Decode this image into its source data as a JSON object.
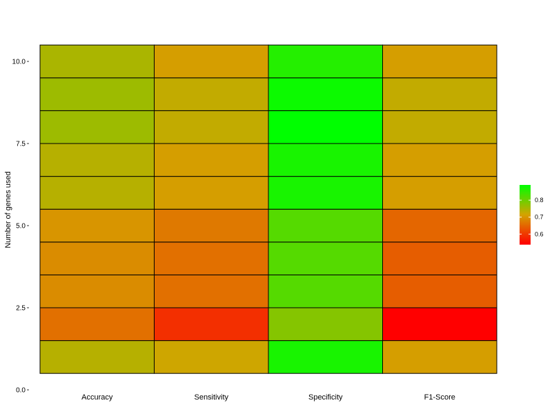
{
  "chart_data": {
    "type": "heatmap",
    "title": "",
    "xlabel": "",
    "ylabel": "Number of genes used",
    "categories": [
      "Accuracy",
      "Sensitivity",
      "Specificity",
      "F1-Score"
    ],
    "y": [
      1,
      2,
      3,
      4,
      5,
      6,
      7,
      8,
      9,
      10
    ],
    "ylim": [
      0,
      10.5
    ],
    "y_ticks": [
      "0.0",
      "2.5",
      "5.0",
      "7.5",
      "10.0"
    ],
    "grid": false,
    "values": [
      [
        0.74,
        0.72,
        0.87,
        0.71
      ],
      [
        0.66,
        0.59,
        0.78,
        0.54
      ],
      [
        0.69,
        0.66,
        0.82,
        0.64
      ],
      [
        0.69,
        0.66,
        0.82,
        0.64
      ],
      [
        0.7,
        0.67,
        0.82,
        0.65
      ],
      [
        0.74,
        0.71,
        0.87,
        0.71
      ],
      [
        0.74,
        0.71,
        0.87,
        0.71
      ],
      [
        0.76,
        0.73,
        0.89,
        0.73
      ],
      [
        0.76,
        0.73,
        0.88,
        0.73
      ],
      [
        0.75,
        0.71,
        0.86,
        0.71
      ]
    ],
    "color_scale": {
      "low": "#ff0000",
      "mid": "#d4a300",
      "high": "#00ff00",
      "min": 0.54,
      "max": 0.89
    },
    "legend": {
      "position": "right",
      "ticks": [
        "0.6",
        "0.7",
        "0.8"
      ]
    }
  }
}
